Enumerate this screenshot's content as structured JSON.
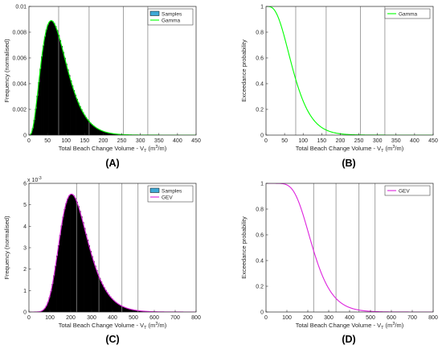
{
  "chart_data": [
    {
      "panel_label": "(A)",
      "type": "bar",
      "xlabel_main": "Total Beach Change Volume - V",
      "xlabel_sub": "T",
      "xlabel_unit": " (m",
      "xlabel_sup": "3",
      "xlabel_end": "/m)",
      "ylabel": "Frequency (normalised)",
      "xlim": [
        0,
        450
      ],
      "ylim": [
        0,
        0.01
      ],
      "xticks": [
        0,
        50,
        100,
        150,
        200,
        250,
        300,
        350,
        400,
        450
      ],
      "yticks": [
        0,
        0.002,
        0.004,
        0.006,
        0.008,
        0.01
      ],
      "ytick_labels": [
        "0",
        "0.002",
        "0.004",
        "0.006",
        "0.008",
        "0.01"
      ],
      "multiplier": "",
      "vlines": [
        80,
        162,
        254,
        320
      ],
      "distribution": {
        "family": "gamma",
        "shape": 4.0,
        "scale": 20.0,
        "peak": 0.0089
      },
      "legend": [
        "Samples",
        "Gamma"
      ],
      "legend_position": "top-right",
      "curve_color": "#00ff00"
    },
    {
      "panel_label": "(B)",
      "type": "line",
      "xlabel_main": "Total Beach Change Volume - V",
      "xlabel_sub": "T",
      "xlabel_unit": " (m",
      "xlabel_sup": "3",
      "xlabel_end": "/m)",
      "ylabel": "Exceedance probability",
      "xlim": [
        0,
        450
      ],
      "ylim": [
        0,
        1
      ],
      "xticks": [
        0,
        50,
        100,
        150,
        200,
        250,
        300,
        350,
        400,
        450
      ],
      "yticks": [
        0,
        0.2,
        0.4,
        0.6,
        0.8,
        1
      ],
      "ytick_labels": [
        "0",
        "0.2",
        "0.4",
        "0.6",
        "0.8",
        "1"
      ],
      "multiplier": "",
      "vlines": [
        80,
        162,
        254,
        320
      ],
      "distribution": {
        "family": "gamma-exceedance",
        "shape": 4.0,
        "scale": 20.0
      },
      "legend": [
        "Gamma"
      ],
      "legend_position": "top-right",
      "curve_color": "#00ff00"
    },
    {
      "panel_label": "(C)",
      "type": "bar",
      "xlabel_main": "Total Beach Change Volume - V",
      "xlabel_sub": "T",
      "xlabel_unit": " (m",
      "xlabel_sup": "3",
      "xlabel_end": "/m)",
      "ylabel": "Frequency (normalised)",
      "xlim": [
        0,
        800
      ],
      "ylim": [
        0,
        6
      ],
      "xticks": [
        0,
        100,
        200,
        300,
        400,
        500,
        600,
        700,
        800
      ],
      "yticks": [
        0,
        1,
        2,
        3,
        4,
        5,
        6
      ],
      "ytick_labels": [
        "0",
        "1",
        "2",
        "3",
        "4",
        "5",
        "6"
      ],
      "multiplier": "x 10",
      "multiplier_exp": "-3",
      "vlines": [
        228,
        335,
        445,
        522
      ],
      "distribution": {
        "family": "gev",
        "xi": -0.05,
        "mu": 200,
        "sigma": 65,
        "peak": 5.5
      },
      "legend": [
        "Samples",
        "GEV"
      ],
      "legend_position": "top-right",
      "curve_color": "#dd22dd"
    },
    {
      "panel_label": "(D)",
      "type": "line",
      "xlabel_main": "Total Beach Change Volume - V",
      "xlabel_sub": "T",
      "xlabel_unit": " (m",
      "xlabel_sup": "3",
      "xlabel_end": "/m)",
      "ylabel": "Exceedance probability",
      "xlim": [
        0,
        800
      ],
      "ylim": [
        0,
        1
      ],
      "xticks": [
        0,
        100,
        200,
        300,
        400,
        500,
        600,
        700,
        800
      ],
      "yticks": [
        0,
        0.2,
        0.4,
        0.6,
        0.8,
        1
      ],
      "ytick_labels": [
        "0",
        "0.2",
        "0.4",
        "0.6",
        "0.8",
        "1"
      ],
      "multiplier": "",
      "vlines": [
        228,
        335,
        445,
        522
      ],
      "distribution": {
        "family": "gev-exceedance",
        "xi": -0.05,
        "mu": 200,
        "sigma": 65
      },
      "legend": [
        "GEV"
      ],
      "legend_position": "top-right",
      "curve_color": "#dd22dd"
    }
  ],
  "colors": {
    "histogram_fill": "#000000",
    "legend_swatch": "#3fa9d6",
    "vline": "#8c8c8c",
    "axis": "#262626"
  }
}
